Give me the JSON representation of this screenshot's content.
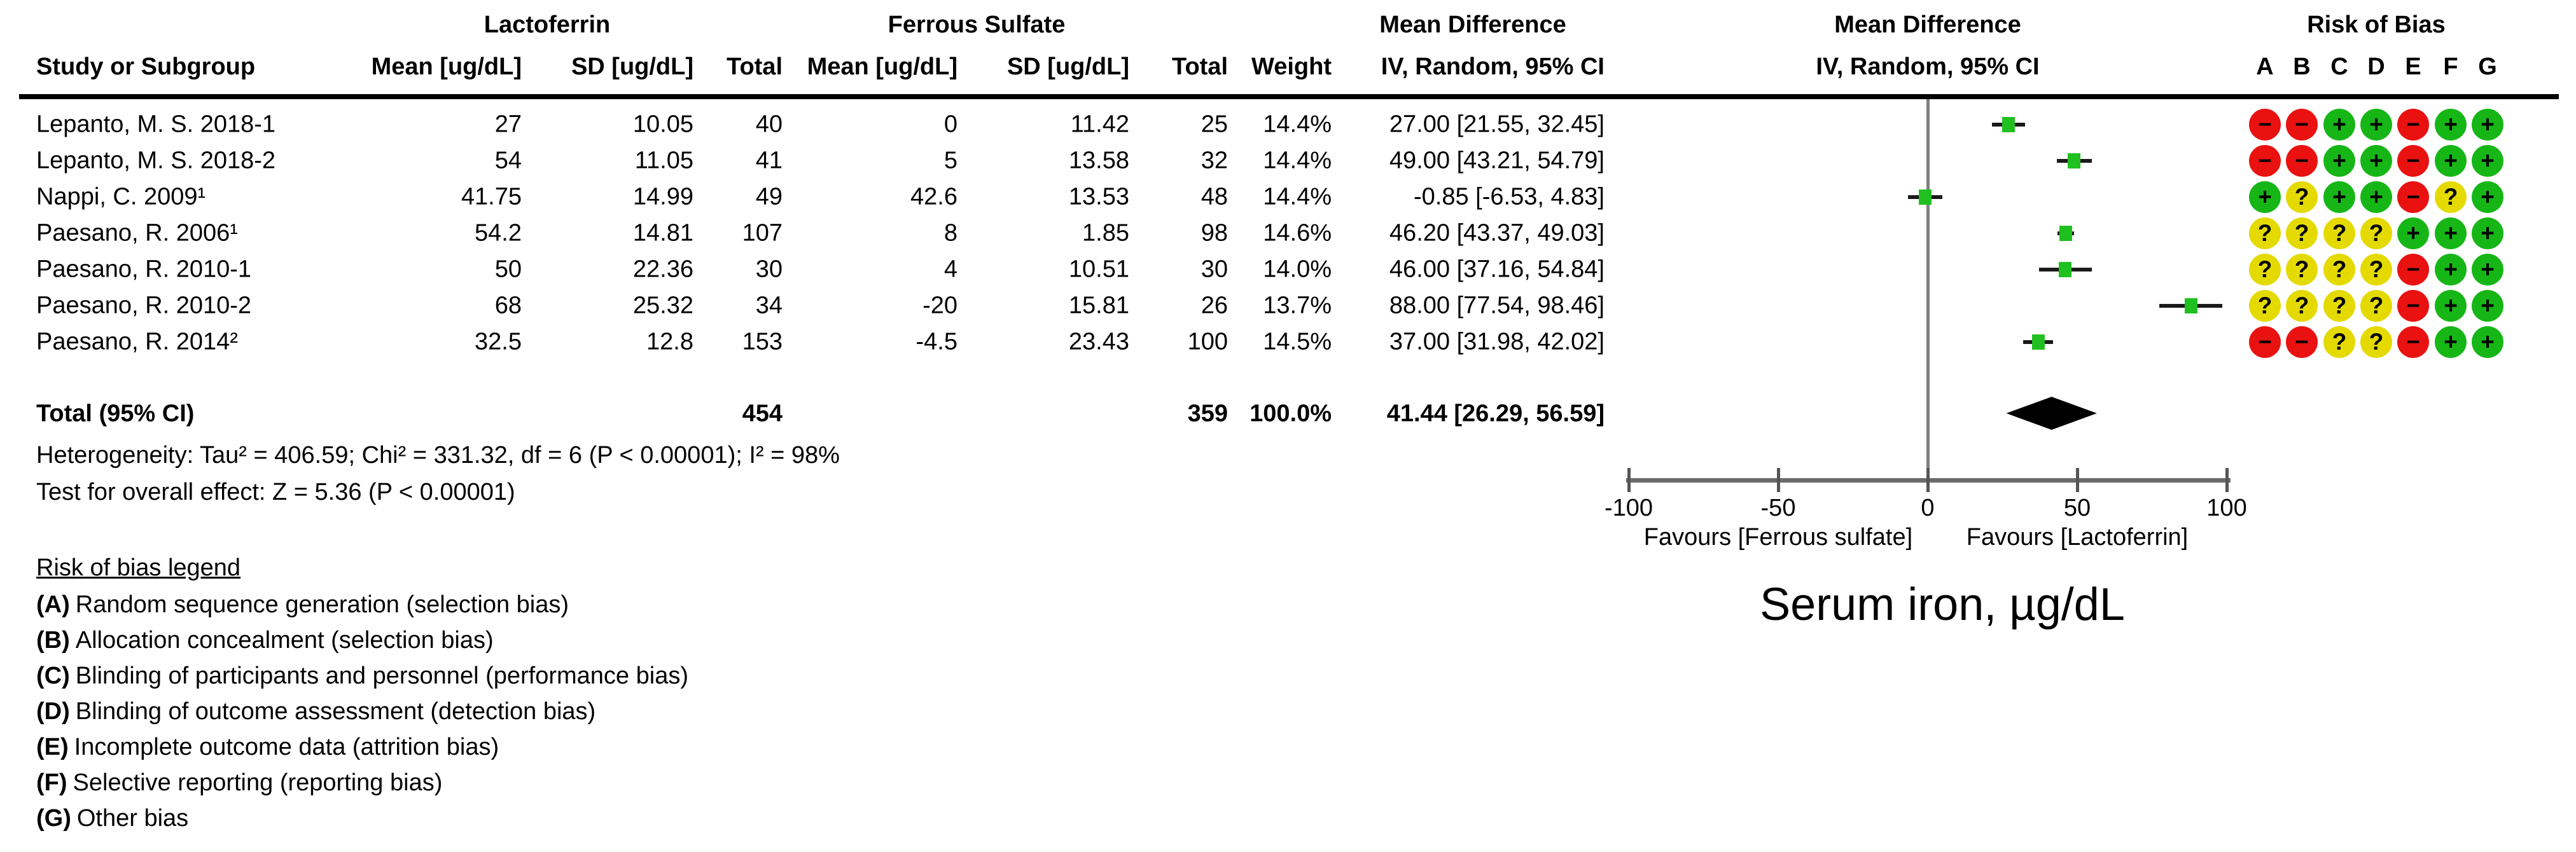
{
  "figure": {
    "title": "Serum iron, µg/dL"
  },
  "table": {
    "group_left": "Lactoferrin",
    "group_right": "Ferrous Sulfate",
    "cols": {
      "study": "Study or Subgroup",
      "mean": "Mean [ug/dL]",
      "sd": "SD [ug/dL]",
      "total": "Total",
      "weight": "Weight"
    },
    "md_header": {
      "line1": "Mean Difference",
      "line2": "IV, Random, 95% CI"
    },
    "plot_header": {
      "line1": "Mean Difference",
      "line2": "IV, Random, 95% CI"
    },
    "rob_header": {
      "title": "Risk of Bias",
      "letters": [
        "A",
        "B",
        "C",
        "D",
        "E",
        "F",
        "G"
      ]
    }
  },
  "studies": [
    {
      "name": "Lepanto, M. S. 2018-1",
      "lf_mean": "27",
      "lf_sd": "10.05",
      "lf_total": "40",
      "fs_mean": "0",
      "fs_sd": "11.42",
      "fs_total": "25",
      "weight": "14.4%",
      "ci_text": "27.00 [21.55, 32.45]",
      "md": 27.0,
      "lo": 21.55,
      "hi": 32.45,
      "rob": [
        "−",
        "−",
        "+",
        "+",
        "−",
        "+",
        "+"
      ]
    },
    {
      "name": "Lepanto, M. S. 2018-2",
      "lf_mean": "54",
      "lf_sd": "11.05",
      "lf_total": "41",
      "fs_mean": "5",
      "fs_sd": "13.58",
      "fs_total": "32",
      "weight": "14.4%",
      "ci_text": "49.00 [43.21, 54.79]",
      "md": 49.0,
      "lo": 43.21,
      "hi": 54.79,
      "rob": [
        "−",
        "−",
        "+",
        "+",
        "−",
        "+",
        "+"
      ]
    },
    {
      "name": "Nappi, C. 2009¹",
      "lf_mean": "41.75",
      "lf_sd": "14.99",
      "lf_total": "49",
      "fs_mean": "42.6",
      "fs_sd": "13.53",
      "fs_total": "48",
      "weight": "14.4%",
      "ci_text": "-0.85 [-6.53, 4.83]",
      "md": -0.85,
      "lo": -6.53,
      "hi": 4.83,
      "rob": [
        "+",
        "?",
        "+",
        "+",
        "−",
        "?",
        "+"
      ]
    },
    {
      "name": "Paesano, R. 2006¹",
      "lf_mean": "54.2",
      "lf_sd": "14.81",
      "lf_total": "107",
      "fs_mean": "8",
      "fs_sd": "1.85",
      "fs_total": "98",
      "weight": "14.6%",
      "ci_text": "46.20 [43.37, 49.03]",
      "md": 46.2,
      "lo": 43.37,
      "hi": 49.03,
      "rob": [
        "?",
        "?",
        "?",
        "?",
        "+",
        "+",
        "+"
      ]
    },
    {
      "name": "Paesano, R. 2010-1",
      "lf_mean": "50",
      "lf_sd": "22.36",
      "lf_total": "30",
      "fs_mean": "4",
      "fs_sd": "10.51",
      "fs_total": "30",
      "weight": "14.0%",
      "ci_text": "46.00 [37.16, 54.84]",
      "md": 46.0,
      "lo": 37.16,
      "hi": 54.84,
      "rob": [
        "?",
        "?",
        "?",
        "?",
        "−",
        "+",
        "+"
      ]
    },
    {
      "name": "Paesano, R. 2010-2",
      "lf_mean": "68",
      "lf_sd": "25.32",
      "lf_total": "34",
      "fs_mean": "-20",
      "fs_sd": "15.81",
      "fs_total": "26",
      "weight": "13.7%",
      "ci_text": "88.00 [77.54, 98.46]",
      "md": 88.0,
      "lo": 77.54,
      "hi": 98.46,
      "rob": [
        "?",
        "?",
        "?",
        "?",
        "−",
        "+",
        "+"
      ]
    },
    {
      "name": "Paesano, R. 2014²",
      "lf_mean": "32.5",
      "lf_sd": "12.8",
      "lf_total": "153",
      "fs_mean": "-4.5",
      "fs_sd": "23.43",
      "fs_total": "100",
      "weight": "14.5%",
      "ci_text": "37.00 [31.98, 42.02]",
      "md": 37.0,
      "lo": 31.98,
      "hi": 42.02,
      "rob": [
        "−",
        "−",
        "?",
        "?",
        "−",
        "+",
        "+"
      ]
    }
  ],
  "total_row": {
    "label": "Total (95% CI)",
    "lf_total": "454",
    "fs_total": "359",
    "weight": "100.0%",
    "ci_text": "41.44 [26.29, 56.59]",
    "md": 41.44,
    "lo": 26.29,
    "hi": 56.59
  },
  "stats": {
    "heterogeneity": "Heterogeneity: Tau² = 406.59; Chi² = 331.32, df = 6 (P < 0.00001); I² = 98%",
    "overall": "Test for overall effect: Z = 5.36 (P < 0.00001)"
  },
  "axis": {
    "tick_values": [
      -100,
      -50,
      0,
      50,
      100
    ],
    "ticks": [
      "-100",
      "-50",
      "0",
      "50",
      "100"
    ],
    "favours_left": "Favours [Ferrous sulfate]",
    "favours_right": "Favours [Lactoferrin]"
  },
  "legend": {
    "title": "Risk of bias legend",
    "items": [
      {
        "label": "(A)",
        "text": "Random sequence generation (selection bias)"
      },
      {
        "label": "(B)",
        "text": "Allocation concealment (selection bias)"
      },
      {
        "label": "(C)",
        "text": "Blinding of participants and personnel (performance bias)"
      },
      {
        "label": "(D)",
        "text": "Blinding of outcome assessment (detection bias)"
      },
      {
        "label": "(E)",
        "text": "Incomplete outcome data (attrition bias)"
      },
      {
        "label": "(F)",
        "text": "Selective reporting (reporting bias)"
      },
      {
        "label": "(G)",
        "text": "Other bias"
      }
    ]
  },
  "colors": {
    "rob_low": "#17b617",
    "rob_high": "#ea1111",
    "rob_unclear": "#e4da00",
    "marker_green": "#1fc01f",
    "diamond": "#000000",
    "axis_gray": "#6b6b6b"
  },
  "chart_data": {
    "type": "forest",
    "title": "Serum iron, µg/dL",
    "effect_measure": "Mean Difference IV, Random, 95% CI",
    "x_range": [
      -100,
      100
    ],
    "x_ticks": [
      -100,
      -50,
      0,
      50,
      100
    ],
    "favours": [
      "Favours [Ferrous sulfate]",
      "Favours [Lactoferrin]"
    ],
    "studies": [
      {
        "name": "Lepanto, M. S. 2018-1",
        "md": 27.0,
        "ci": [
          21.55,
          32.45
        ],
        "weight_pct": 14.4
      },
      {
        "name": "Lepanto, M. S. 2018-2",
        "md": 49.0,
        "ci": [
          43.21,
          54.79
        ],
        "weight_pct": 14.4
      },
      {
        "name": "Nappi, C. 2009¹",
        "md": -0.85,
        "ci": [
          -6.53,
          4.83
        ],
        "weight_pct": 14.4
      },
      {
        "name": "Paesano, R. 2006¹",
        "md": 46.2,
        "ci": [
          43.37,
          49.03
        ],
        "weight_pct": 14.6
      },
      {
        "name": "Paesano, R. 2010-1",
        "md": 46.0,
        "ci": [
          37.16,
          54.84
        ],
        "weight_pct": 14.0
      },
      {
        "name": "Paesano, R. 2010-2",
        "md": 88.0,
        "ci": [
          77.54,
          98.46
        ],
        "weight_pct": 13.7
      },
      {
        "name": "Paesano, R. 2014²",
        "md": 37.0,
        "ci": [
          31.98,
          42.02
        ],
        "weight_pct": 14.5
      }
    ],
    "total": {
      "md": 41.44,
      "ci": [
        26.29,
        56.59
      ],
      "weight_pct": 100.0,
      "lf_n": 454,
      "fs_n": 359
    },
    "heterogeneity": {
      "tau2": 406.59,
      "chi2": 331.32,
      "df": 6,
      "p": "< 0.00001",
      "i2_pct": 98
    },
    "overall_effect": {
      "z": 5.36,
      "p": "< 0.00001"
    }
  }
}
